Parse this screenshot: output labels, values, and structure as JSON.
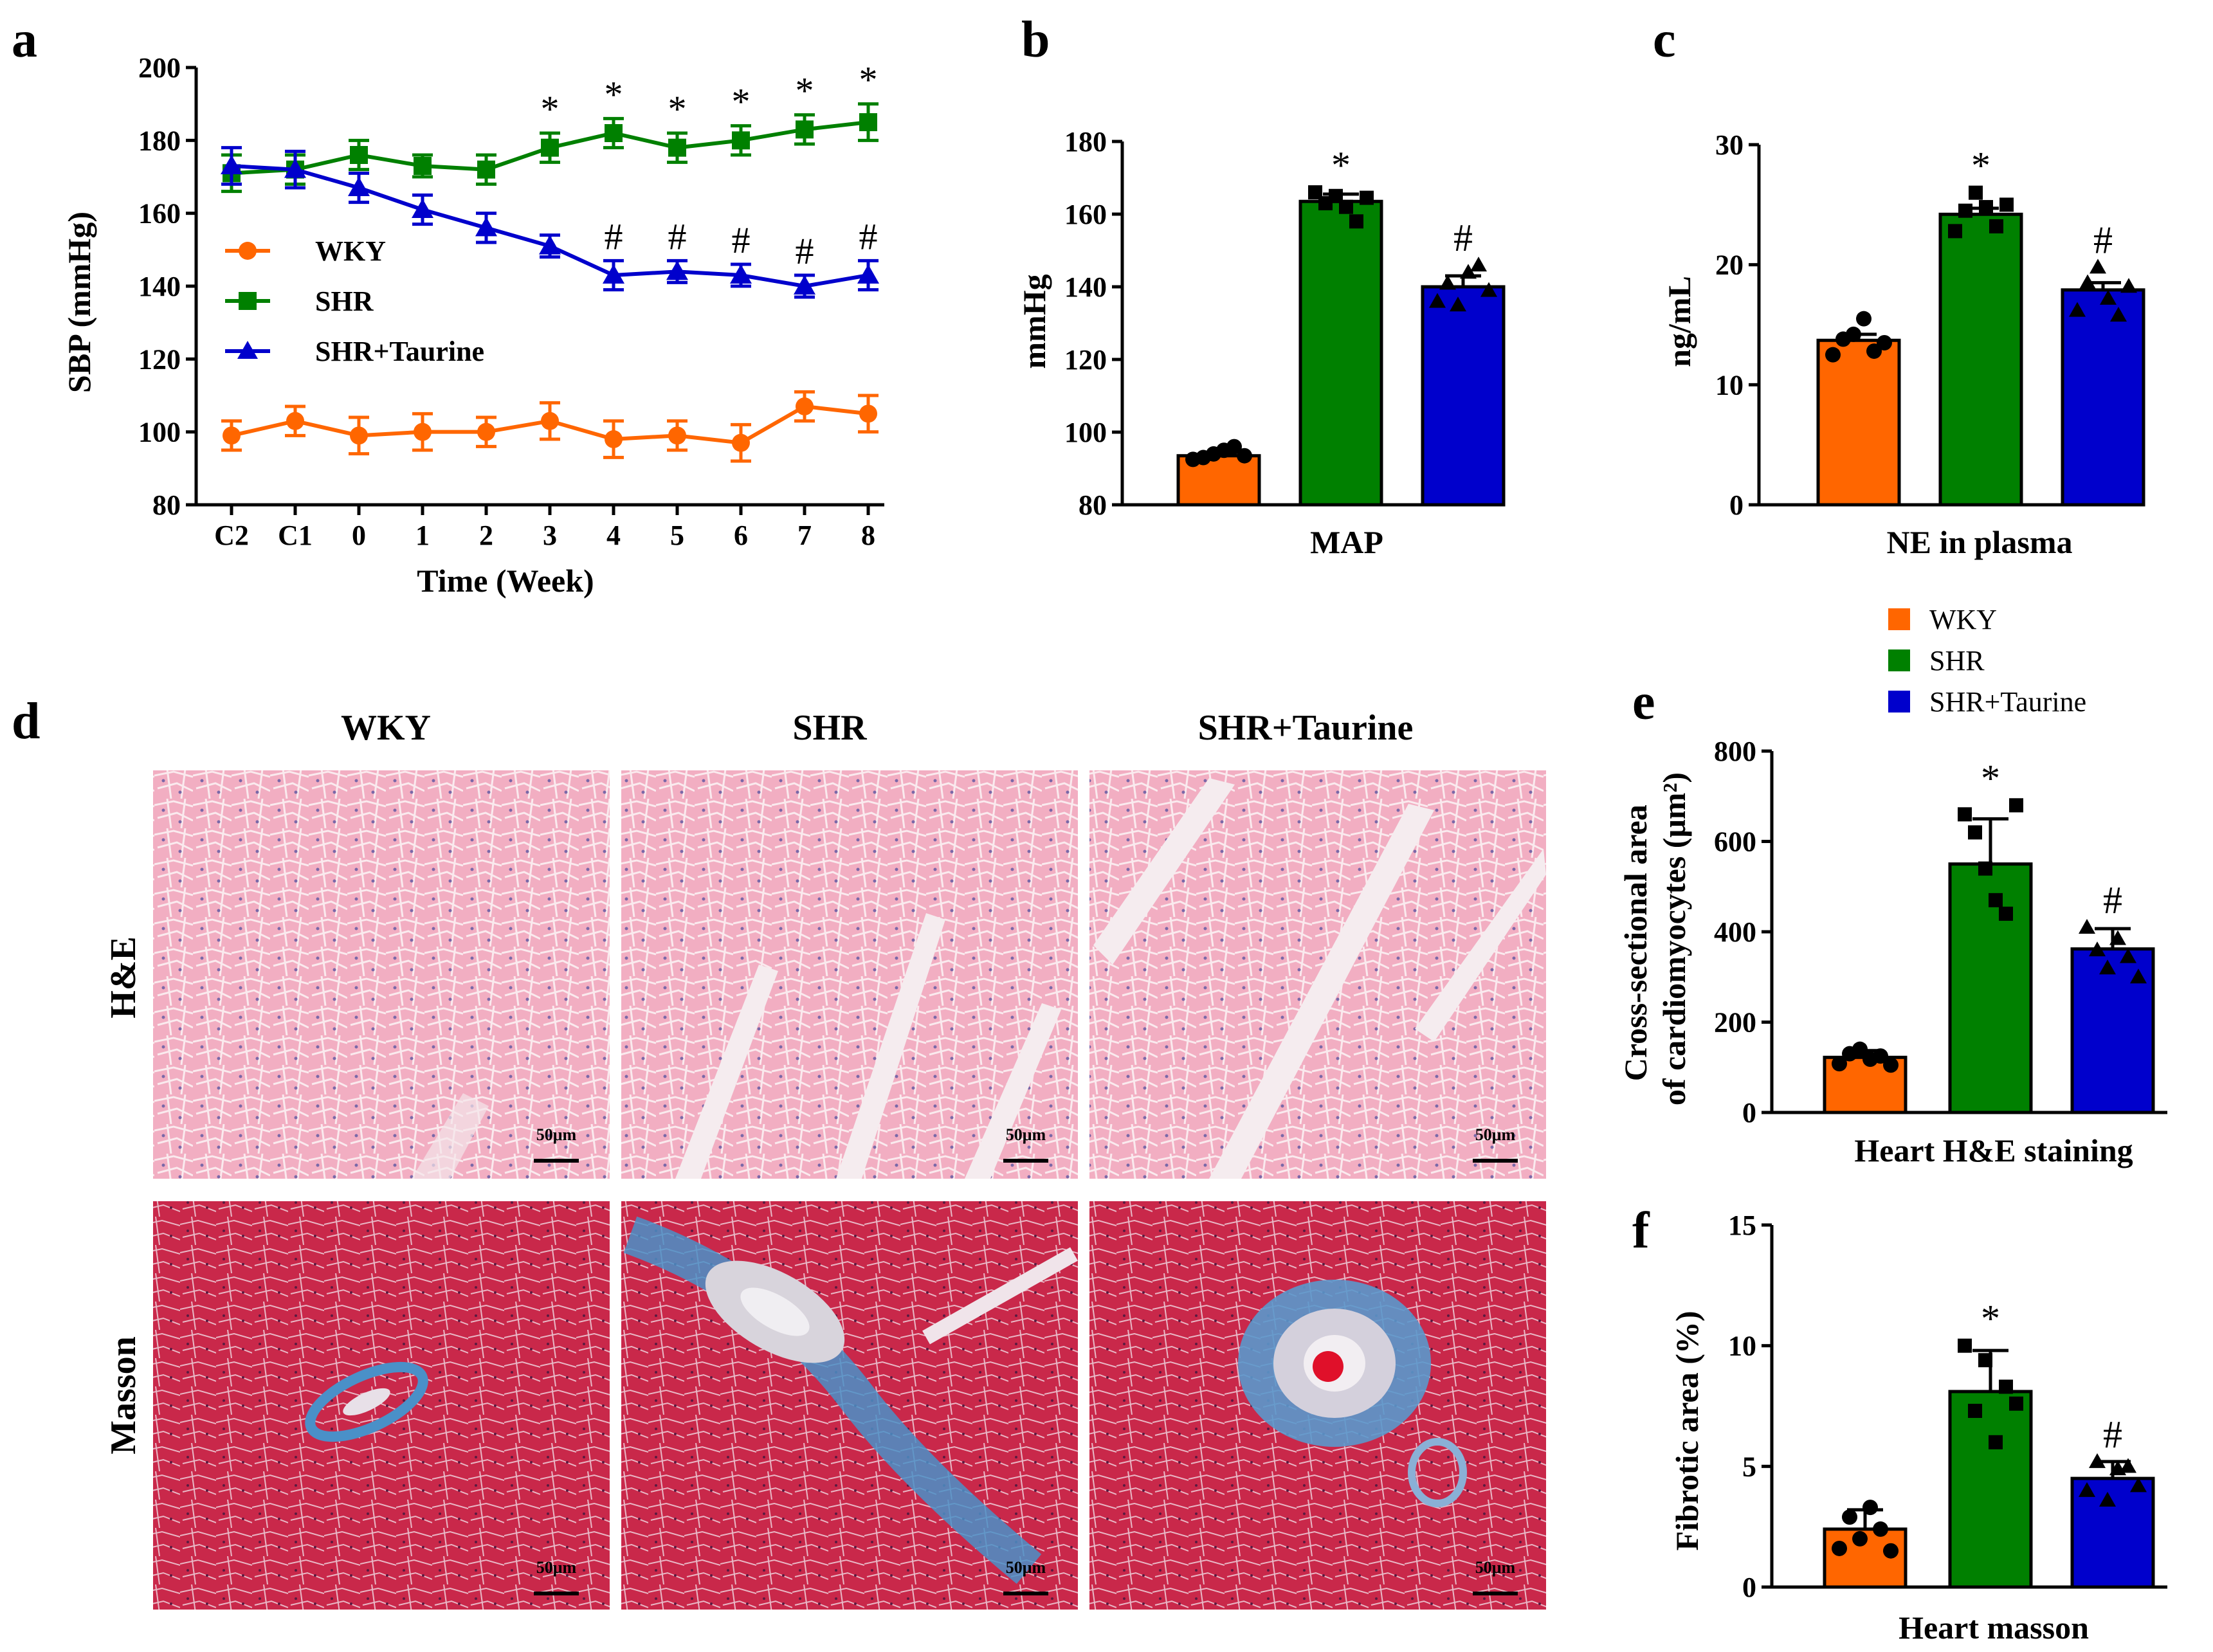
{
  "colors": {
    "wky": "#ff6600",
    "shr": "#008000",
    "taurine": "#0000cc",
    "axis": "#000000",
    "he_tissue": "#f4b6c8",
    "he_gap": "#f6eef0",
    "masson_tissue": "#cc2a4c",
    "masson_fibrosis": "#4a90c8"
  },
  "legend_top": {
    "items": [
      {
        "label": "WKY",
        "series": "wky"
      },
      {
        "label": "SHR",
        "series": "shr"
      },
      {
        "label": "SHR+Taurine",
        "series": "taurine"
      }
    ]
  },
  "panel_d": {
    "letter": "d",
    "columns": [
      "WKY",
      "SHR",
      "SHR+Taurine"
    ],
    "rows": [
      "H&E",
      "Masson"
    ],
    "scale_bar": "50μm"
  },
  "chart_data": [
    {
      "id": "a",
      "type": "line",
      "letter": "a",
      "title": "",
      "xlabel": "Time (Week)",
      "ylabel": "SBP (mmHg)",
      "categories": [
        "C2",
        "C1",
        "0",
        "1",
        "2",
        "3",
        "4",
        "5",
        "6",
        "7",
        "8"
      ],
      "ylim": [
        80,
        200
      ],
      "yticks": [
        80,
        100,
        120,
        140,
        160,
        180,
        200
      ],
      "series": [
        {
          "name": "WKY",
          "key": "wky",
          "marker": "circle",
          "values": [
            99,
            103,
            99,
            100,
            100,
            103,
            98,
            99,
            97,
            107,
            105
          ],
          "errors": [
            4,
            4,
            5,
            5,
            4,
            5,
            5,
            4,
            5,
            4,
            5
          ],
          "annotations": [
            "",
            "",
            "",
            "",
            "",
            "",
            "",
            "",
            "",
            "",
            ""
          ]
        },
        {
          "name": "SHR",
          "key": "shr",
          "marker": "square",
          "values": [
            171,
            172,
            176,
            173,
            172,
            178,
            182,
            178,
            180,
            183,
            185
          ],
          "errors": [
            5,
            4,
            4,
            3,
            4,
            4,
            4,
            4,
            4,
            4,
            5
          ],
          "annotations": [
            "",
            "",
            "",
            "",
            "",
            "*",
            "*",
            "*",
            "*",
            "*",
            "*"
          ]
        },
        {
          "name": "SHR+Taurine",
          "key": "taurine",
          "marker": "triangle",
          "values": [
            173,
            172,
            167,
            161,
            156,
            151,
            143,
            144,
            143,
            140,
            143
          ],
          "errors": [
            5,
            5,
            4,
            4,
            4,
            3,
            4,
            3,
            3,
            3,
            4
          ],
          "annotations": [
            "",
            "",
            "",
            "",
            "",
            "",
            "#",
            "#",
            "#",
            "#",
            "#"
          ]
        }
      ],
      "legend": [
        "WKY",
        "SHR",
        "SHR+Taurine"
      ]
    },
    {
      "id": "b",
      "type": "bar",
      "letter": "b",
      "xlabel": "MAP",
      "ylabel": "mmHg",
      "ylim": [
        80,
        180
      ],
      "yticks": [
        80,
        100,
        120,
        140,
        160,
        180
      ],
      "categories": [
        "WKY",
        "SHR",
        "SHR+Taurine"
      ],
      "values": [
        93.5,
        163.5,
        140
      ],
      "errors": [
        0.8,
        2,
        3
      ],
      "annotations": [
        "",
        "*",
        "#"
      ],
      "points": [
        [
          92.5,
          93,
          94,
          95,
          96,
          93.5
        ],
        [
          166,
          163,
          165,
          162,
          158,
          164.5
        ],
        [
          136,
          141,
          135,
          144,
          146,
          139
        ]
      ]
    },
    {
      "id": "c",
      "type": "bar",
      "letter": "c",
      "xlabel": "NE in plasma",
      "ylabel": "ng/mL",
      "ylim": [
        0,
        30
      ],
      "yticks": [
        0,
        10,
        20,
        30
      ],
      "categories": [
        "WKY",
        "SHR",
        "SHR+Taurine"
      ],
      "values": [
        13.7,
        24.2,
        17.9
      ],
      "errors": [
        0.5,
        0.5,
        0.6
      ],
      "annotations": [
        "",
        "*",
        "#"
      ],
      "points": [
        [
          12.5,
          13.8,
          14.2,
          15.5,
          12.8,
          13.5
        ],
        [
          22.8,
          24.5,
          26,
          24.8,
          23.2,
          25
        ],
        [
          16.2,
          18.5,
          19.8,
          17.2,
          15.8,
          18.2
        ]
      ]
    },
    {
      "id": "e",
      "type": "bar",
      "letter": "e",
      "xlabel": "Heart H&E staining",
      "ylabel": "Cross-sectional area of cardiomyocytes (μm²)",
      "ylabel_lines": [
        "Cross-sectional area",
        "of cardiomyocytes (μm²)"
      ],
      "ylim": [
        0,
        800
      ],
      "yticks": [
        0,
        200,
        400,
        600,
        800
      ],
      "categories": [
        "WKY",
        "SHR",
        "SHR+Taurine"
      ],
      "values": [
        122,
        550,
        362
      ],
      "errors": [
        15,
        100,
        45
      ],
      "annotations": [
        "",
        "*",
        "#"
      ],
      "points": [
        [
          108,
          130,
          140,
          118,
          125,
          105
        ],
        [
          660,
          620,
          540,
          470,
          440,
          680
        ],
        [
          410,
          360,
          320,
          385,
          345,
          300
        ]
      ]
    },
    {
      "id": "f",
      "type": "bar",
      "letter": "f",
      "xlabel": "Heart masson",
      "ylabel": "Fibrotic area (%)",
      "ylim": [
        0,
        15
      ],
      "yticks": [
        0,
        5,
        10,
        15
      ],
      "categories": [
        "WKY",
        "SHR",
        "SHR+Taurine"
      ],
      "values": [
        2.4,
        8.1,
        4.5
      ],
      "errors": [
        0.8,
        1.7,
        0.7
      ],
      "annotations": [
        "",
        "*",
        "#"
      ],
      "points": [
        [
          1.6,
          2.9,
          2.0,
          3.3,
          2.4,
          1.5
        ],
        [
          10,
          7.3,
          9.4,
          6.0,
          8.3,
          7.6
        ],
        [
          4.0,
          5.2,
          3.6,
          4.9,
          5.0,
          4.2
        ]
      ]
    }
  ]
}
